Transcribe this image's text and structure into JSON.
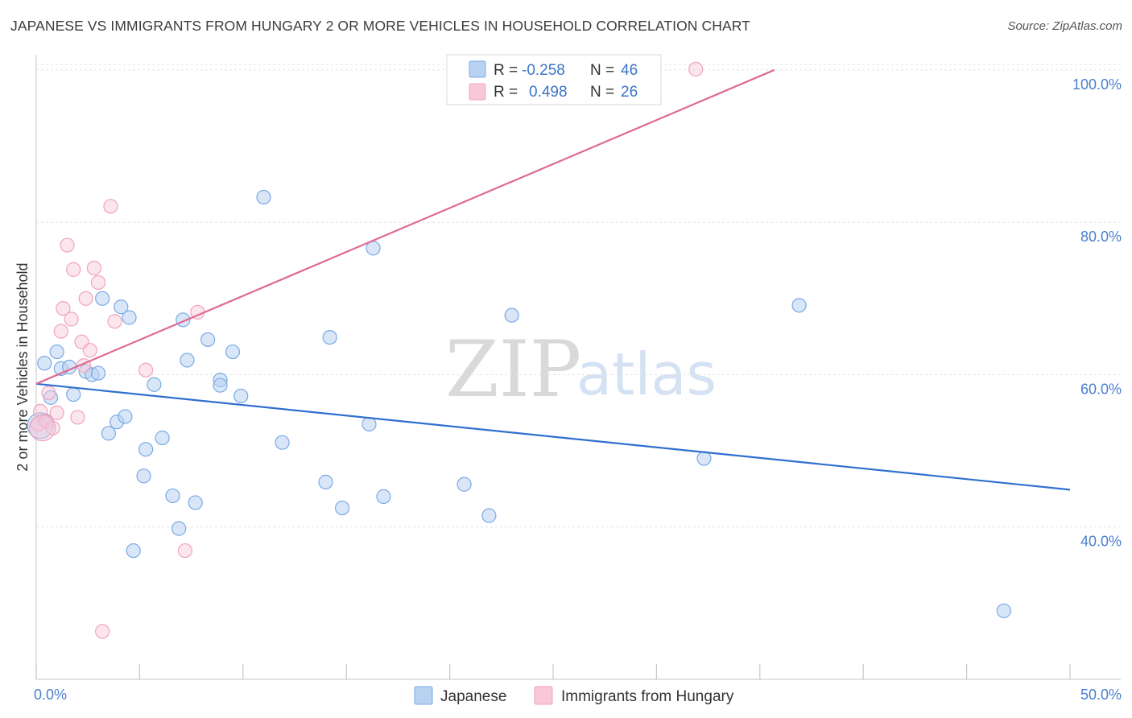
{
  "title": "JAPANESE VS IMMIGRANTS FROM HUNGARY 2 OR MORE VEHICLES IN HOUSEHOLD CORRELATION CHART",
  "source": "Source: ZipAtlas.com",
  "watermark": {
    "zip": "ZIP",
    "atlas": "atlas"
  },
  "colors": {
    "japanese": "#7aaae6",
    "japanese_line": "#2f6fcf",
    "hungary": "#f0a3bd",
    "hungary_line": "#e06a93",
    "tick": "#4a7fcf"
  },
  "legend": {
    "r_label": "R =",
    "n_label": "N =",
    "japanese": {
      "r": "-0.258",
      "n": "46"
    },
    "hungary": {
      "r": "0.498",
      "n": "26"
    }
  },
  "bottom_legend": {
    "japanese": "Japanese",
    "hungary": "Immigrants from Hungary"
  },
  "chart_data": {
    "type": "scatter",
    "title": "JAPANESE VS IMMIGRANTS FROM HUNGARY 2 OR MORE VEHICLES IN HOUSEHOLD CORRELATION CHART",
    "ylabel": "2 or more Vehicles in Household",
    "xlabel": "",
    "xlim": [
      0,
      50
    ],
    "ylim": [
      20,
      102
    ],
    "x_ticks": [
      "0.0%",
      "50.0%"
    ],
    "y_ticks": [
      {
        "value": 40,
        "label": "40.0%"
      },
      {
        "value": 60,
        "label": "60.0%"
      },
      {
        "value": 80,
        "label": "80.0%"
      },
      {
        "value": 100,
        "label": "100.0%"
      }
    ],
    "grid": true,
    "series": [
      {
        "name": "Japanese",
        "points": [
          [
            0.4,
            54.0
          ],
          [
            0.4,
            61.5
          ],
          [
            0.7,
            57.0
          ],
          [
            1.0,
            63.0
          ],
          [
            1.2,
            60.8
          ],
          [
            1.6,
            61.0
          ],
          [
            1.8,
            57.4
          ],
          [
            2.4,
            60.4
          ],
          [
            2.7,
            60.0
          ],
          [
            3.0,
            60.2
          ],
          [
            3.2,
            70.0
          ],
          [
            3.5,
            52.3
          ],
          [
            3.9,
            53.8
          ],
          [
            4.1,
            68.9
          ],
          [
            4.3,
            54.5
          ],
          [
            4.5,
            67.5
          ],
          [
            4.7,
            36.9
          ],
          [
            5.2,
            46.7
          ],
          [
            5.3,
            50.2
          ],
          [
            5.7,
            58.7
          ],
          [
            6.1,
            51.7
          ],
          [
            6.6,
            44.1
          ],
          [
            6.9,
            39.8
          ],
          [
            7.1,
            67.2
          ],
          [
            7.3,
            61.9
          ],
          [
            7.7,
            43.2
          ],
          [
            8.3,
            64.6
          ],
          [
            8.9,
            59.3
          ],
          [
            8.9,
            58.6
          ],
          [
            9.5,
            63.0
          ],
          [
            9.9,
            57.2
          ],
          [
            11.0,
            83.3
          ],
          [
            11.9,
            51.1
          ],
          [
            14.0,
            45.9
          ],
          [
            14.2,
            64.9
          ],
          [
            14.8,
            42.5
          ],
          [
            16.1,
            53.5
          ],
          [
            16.3,
            76.6
          ],
          [
            16.8,
            44.0
          ],
          [
            20.7,
            45.6
          ],
          [
            21.9,
            41.5
          ],
          [
            23.0,
            67.8
          ],
          [
            32.3,
            49.0
          ],
          [
            36.9,
            69.1
          ],
          [
            46.8,
            29.0
          ],
          [
            0.2,
            53.3
          ]
        ],
        "trend": {
          "x": [
            0,
            50
          ],
          "y": [
            58.8,
            44.9
          ]
        }
      },
      {
        "name": "Immigrants from Hungary",
        "points": [
          [
            0.1,
            53.5
          ],
          [
            0.2,
            55.2
          ],
          [
            0.5,
            53.9
          ],
          [
            0.6,
            57.6
          ],
          [
            0.8,
            53.0
          ],
          [
            1.0,
            55.0
          ],
          [
            1.2,
            65.7
          ],
          [
            1.3,
            68.7
          ],
          [
            1.5,
            77.0
          ],
          [
            1.7,
            67.3
          ],
          [
            1.8,
            73.8
          ],
          [
            2.0,
            54.4
          ],
          [
            2.2,
            64.3
          ],
          [
            2.3,
            61.2
          ],
          [
            2.4,
            70.0
          ],
          [
            2.6,
            63.2
          ],
          [
            2.8,
            74.0
          ],
          [
            3.0,
            72.1
          ],
          [
            3.2,
            26.3
          ],
          [
            3.6,
            82.1
          ],
          [
            3.8,
            67.0
          ],
          [
            5.3,
            60.6
          ],
          [
            7.2,
            36.9
          ],
          [
            7.8,
            68.2
          ],
          [
            31.9,
            100.1
          ],
          [
            0.3,
            53.0
          ]
        ],
        "trend": {
          "x": [
            0,
            35.7
          ],
          "y": [
            58.8,
            100.0
          ]
        }
      }
    ]
  }
}
